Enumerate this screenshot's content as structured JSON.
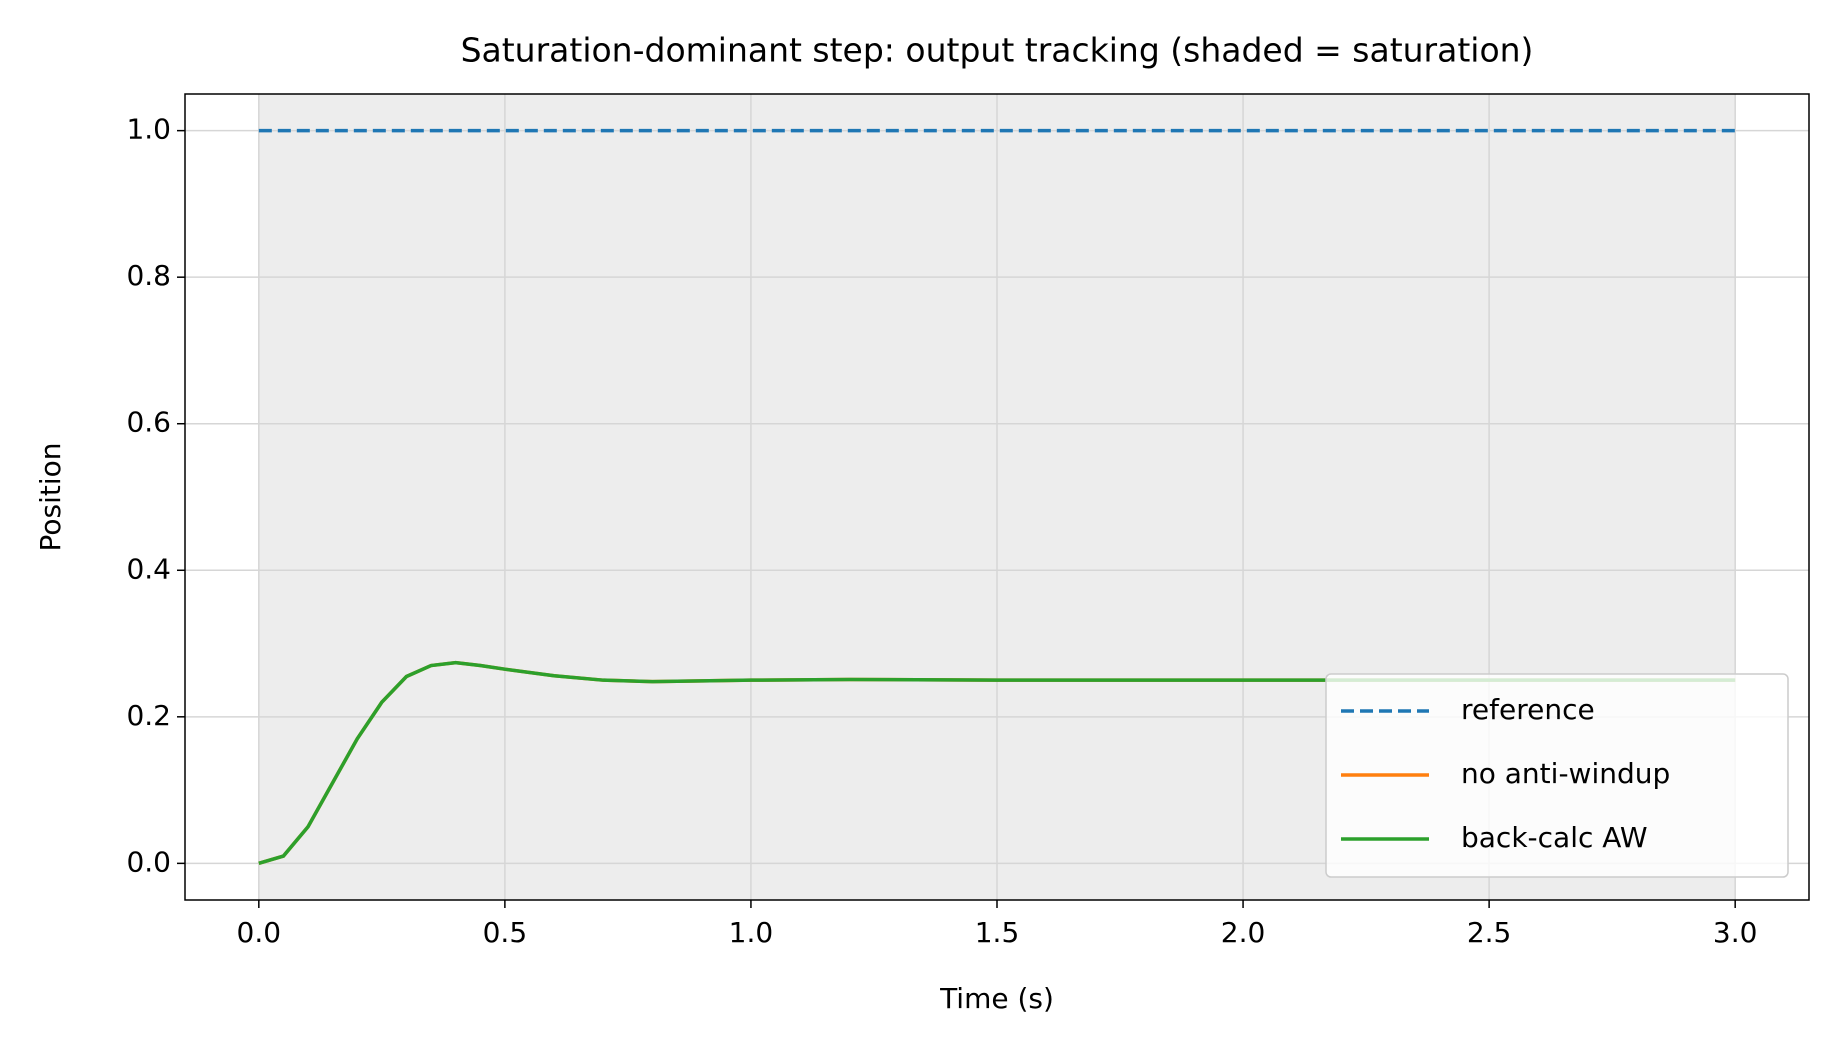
{
  "chart_data": {
    "type": "line",
    "title": "Saturation-dominant step: output tracking (shaded = saturation)",
    "x_label": "Time (s)",
    "y_label": "Position",
    "xlim": [
      -0.15,
      3.15
    ],
    "ylim": [
      -0.05,
      1.05
    ],
    "xticks": [
      {
        "value": 0,
        "label": "0.0"
      },
      0.5,
      {
        "value": 1,
        "label": "1.0"
      },
      1.5,
      {
        "value": 2,
        "label": "2.0"
      },
      2.5,
      {
        "value": 3,
        "label": "3.0"
      }
    ],
    "yticks": [
      {
        "value": 0,
        "label": "0.0"
      },
      0.2,
      0.4,
      0.6,
      0.8,
      {
        "value": 1,
        "label": "1.0"
      }
    ],
    "grid": true,
    "legend": "lower right",
    "shaded_regions": [
      [
        0,
        3
      ]
    ],
    "shade_color": "#ededed",
    "series": [
      {
        "name": "reference",
        "color": "#1f77b4",
        "style": "dashed",
        "x": [
          0,
          3
        ],
        "values": [
          1,
          1
        ]
      },
      {
        "name": "no anti-windup",
        "color": "#ff7f0e",
        "style": "solid",
        "x": [
          0,
          0.05,
          0.1,
          0.15,
          0.2,
          0.25,
          0.3,
          0.35,
          0.4,
          0.45,
          0.5,
          0.6,
          0.7,
          0.8,
          0.9,
          1.0,
          1.2,
          1.5,
          2.0,
          2.5,
          3.0
        ],
        "values": [
          0,
          0.01,
          0.05,
          0.11,
          0.17,
          0.22,
          0.255,
          0.27,
          0.274,
          0.27,
          0.265,
          0.256,
          0.25,
          0.248,
          0.249,
          0.25,
          0.251,
          0.25,
          0.25,
          0.25,
          0.25
        ]
      },
      {
        "name": "back-calc AW",
        "color": "#2ca02c",
        "style": "solid",
        "x": [
          0,
          0.05,
          0.1,
          0.15,
          0.2,
          0.25,
          0.3,
          0.35,
          0.4,
          0.45,
          0.5,
          0.6,
          0.7,
          0.8,
          0.9,
          1.0,
          1.2,
          1.5,
          2.0,
          2.5,
          3.0
        ],
        "values": [
          0,
          0.01,
          0.05,
          0.11,
          0.17,
          0.22,
          0.255,
          0.27,
          0.274,
          0.27,
          0.265,
          0.256,
          0.25,
          0.248,
          0.249,
          0.25,
          0.251,
          0.25,
          0.25,
          0.25,
          0.25
        ]
      }
    ]
  }
}
